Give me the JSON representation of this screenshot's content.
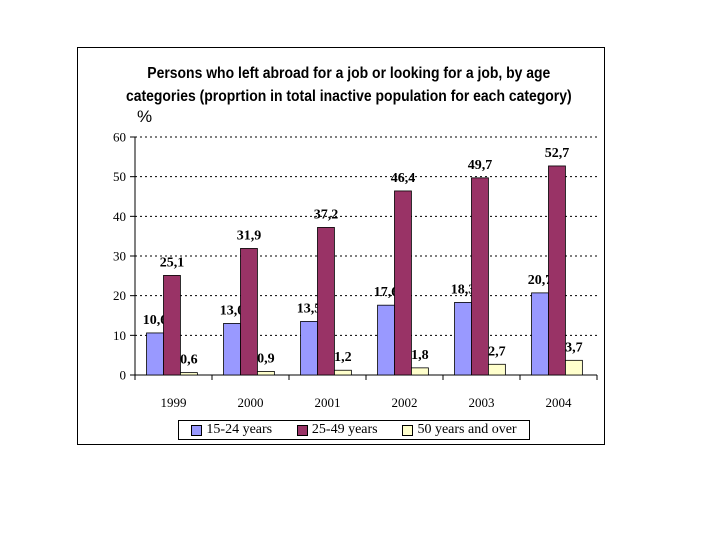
{
  "chart_data": {
    "type": "bar",
    "title_lines": [
      "Persons who left abroad for a job or looking for a job, by age",
      "categories (proprtion in total inactive population for each category)"
    ],
    "ylabel": "%",
    "xlabel": "",
    "ylim": [
      0,
      60
    ],
    "yticks": [
      "0",
      "10",
      "20",
      "30",
      "40",
      "50",
      "60"
    ],
    "grid": true,
    "legend_position": "bottom",
    "categories": [
      "1999",
      "2000",
      "2001",
      "2002",
      "2003",
      "2004"
    ],
    "series": [
      {
        "name": "15-24 years",
        "color": "#9999ff",
        "values": [
          10.6,
          13.0,
          13.5,
          17.6,
          18.3,
          20.7
        ],
        "labels": [
          "10,6",
          "13,0",
          "13,5",
          "17,6",
          "18,3",
          "20,7"
        ]
      },
      {
        "name": "25-49 years",
        "color": "#993366",
        "values": [
          25.1,
          31.9,
          37.2,
          46.4,
          49.7,
          52.7
        ],
        "labels": [
          "25,1",
          "31,9",
          "37,2",
          "46,4",
          "49,7",
          "52,7"
        ]
      },
      {
        "name": "50 years and over",
        "color": "#ffffcc",
        "values": [
          0.6,
          0.9,
          1.2,
          1.8,
          2.7,
          3.7
        ],
        "labels": [
          "0,6",
          "0,9",
          "1,2",
          "1,8",
          "2,7",
          "3,7"
        ]
      }
    ]
  }
}
